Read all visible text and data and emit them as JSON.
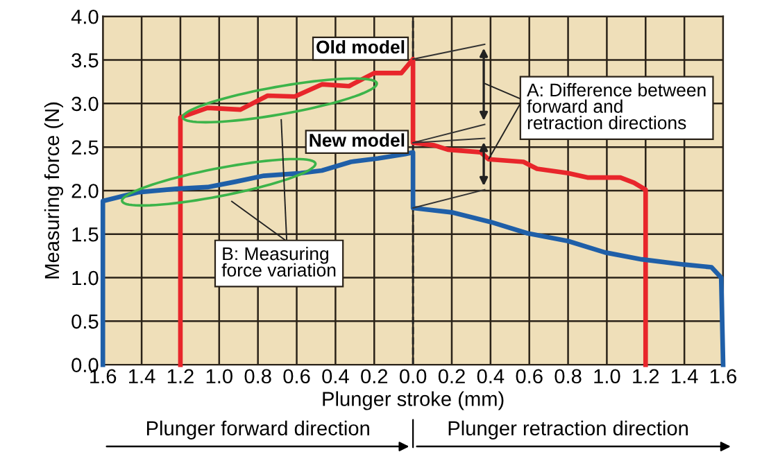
{
  "chart_data": {
    "type": "line",
    "xlabel": "Plunger stroke (mm)",
    "ylabel": "Measuring force (N)",
    "xlim": [
      -1.6,
      1.6
    ],
    "ylim": [
      0,
      4
    ],
    "xticks": [
      {
        "value": -1.6,
        "label": "1.6"
      },
      {
        "value": -1.4,
        "label": "1.4"
      },
      {
        "value": -1.2,
        "label": "1.2"
      },
      {
        "value": -1.0,
        "label": "1.0"
      },
      {
        "value": -0.8,
        "label": "0.8"
      },
      {
        "value": -0.6,
        "label": "0.6"
      },
      {
        "value": -0.4,
        "label": "0.4"
      },
      {
        "value": -0.2,
        "label": "0.2"
      },
      {
        "value": 0,
        "label": "0.0"
      },
      {
        "value": 0.2,
        "label": "0.2"
      },
      {
        "value": 0.4,
        "label": "0.4"
      },
      {
        "value": 0.6,
        "label": "0.6"
      },
      {
        "value": 0.8,
        "label": "0.8"
      },
      {
        "value": 1.0,
        "label": "1.0"
      },
      {
        "value": 1.2,
        "label": "1.2"
      },
      {
        "value": 1.4,
        "label": "1.4"
      },
      {
        "value": 1.6,
        "label": "1.6"
      }
    ],
    "yticks": [
      {
        "value": 0,
        "label": "0.0"
      },
      {
        "value": 0.5,
        "label": "0.5"
      },
      {
        "value": 1,
        "label": "1.0"
      },
      {
        "value": 1.5,
        "label": "1.5"
      },
      {
        "value": 2,
        "label": "2.0"
      },
      {
        "value": 2.5,
        "label": "2.5"
      },
      {
        "value": 3,
        "label": "3.0"
      },
      {
        "value": 3.5,
        "label": "3.5"
      },
      {
        "value": 4,
        "label": "4.0"
      }
    ],
    "grid": true,
    "marker": "none",
    "line_style": "solid",
    "legend": false,
    "series": [
      {
        "name": "Old model",
        "color": "#e8262b",
        "x": [
          -1.2,
          -1.2,
          -1.06,
          -0.89,
          -0.75,
          -0.61,
          -0.47,
          -0.33,
          -0.2,
          -0.06,
          0,
          0,
          0.11,
          0.18,
          0.35,
          0.39,
          0.57,
          0.64,
          0.8,
          0.9,
          1.07,
          1.14,
          1.2,
          1.2
        ],
        "values": [
          0,
          2.84,
          2.95,
          2.93,
          3.09,
          3.08,
          3.22,
          3.2,
          3.35,
          3.35,
          3.51,
          2.55,
          2.52,
          2.47,
          2.44,
          2.36,
          2.33,
          2.25,
          2.2,
          2.15,
          2.15,
          2.09,
          2.01,
          0
        ]
      },
      {
        "name": "New model",
        "color": "#1f5fa8",
        "x": [
          -1.6,
          -1.6,
          -1.42,
          -1.22,
          -1.06,
          -0.92,
          -0.77,
          -0.58,
          -0.47,
          -0.32,
          -0.18,
          -0.04,
          0,
          0,
          0.2,
          0.4,
          0.59,
          0.8,
          0.99,
          1.18,
          1.4,
          1.54,
          1.59,
          1.6
        ],
        "values": [
          0,
          1.88,
          1.98,
          2.02,
          2.04,
          2.1,
          2.17,
          2.2,
          2.23,
          2.33,
          2.37,
          2.42,
          2.44,
          1.8,
          1.75,
          1.64,
          1.51,
          1.42,
          1.29,
          1.21,
          1.15,
          1.12,
          1.0,
          0
        ]
      }
    ],
    "ref_lines": [
      {
        "axis": "x",
        "value": 0,
        "color": "#222222",
        "line_style": "dashed"
      }
    ],
    "annotations": [
      {
        "text": "A: Difference between\nforward and\nretraction directions",
        "x": 0.39,
        "y": 2.36
      },
      "B: Measuring\nforce variation",
      "Plunger forward direction",
      "Plunger retraction direction"
    ]
  }
}
